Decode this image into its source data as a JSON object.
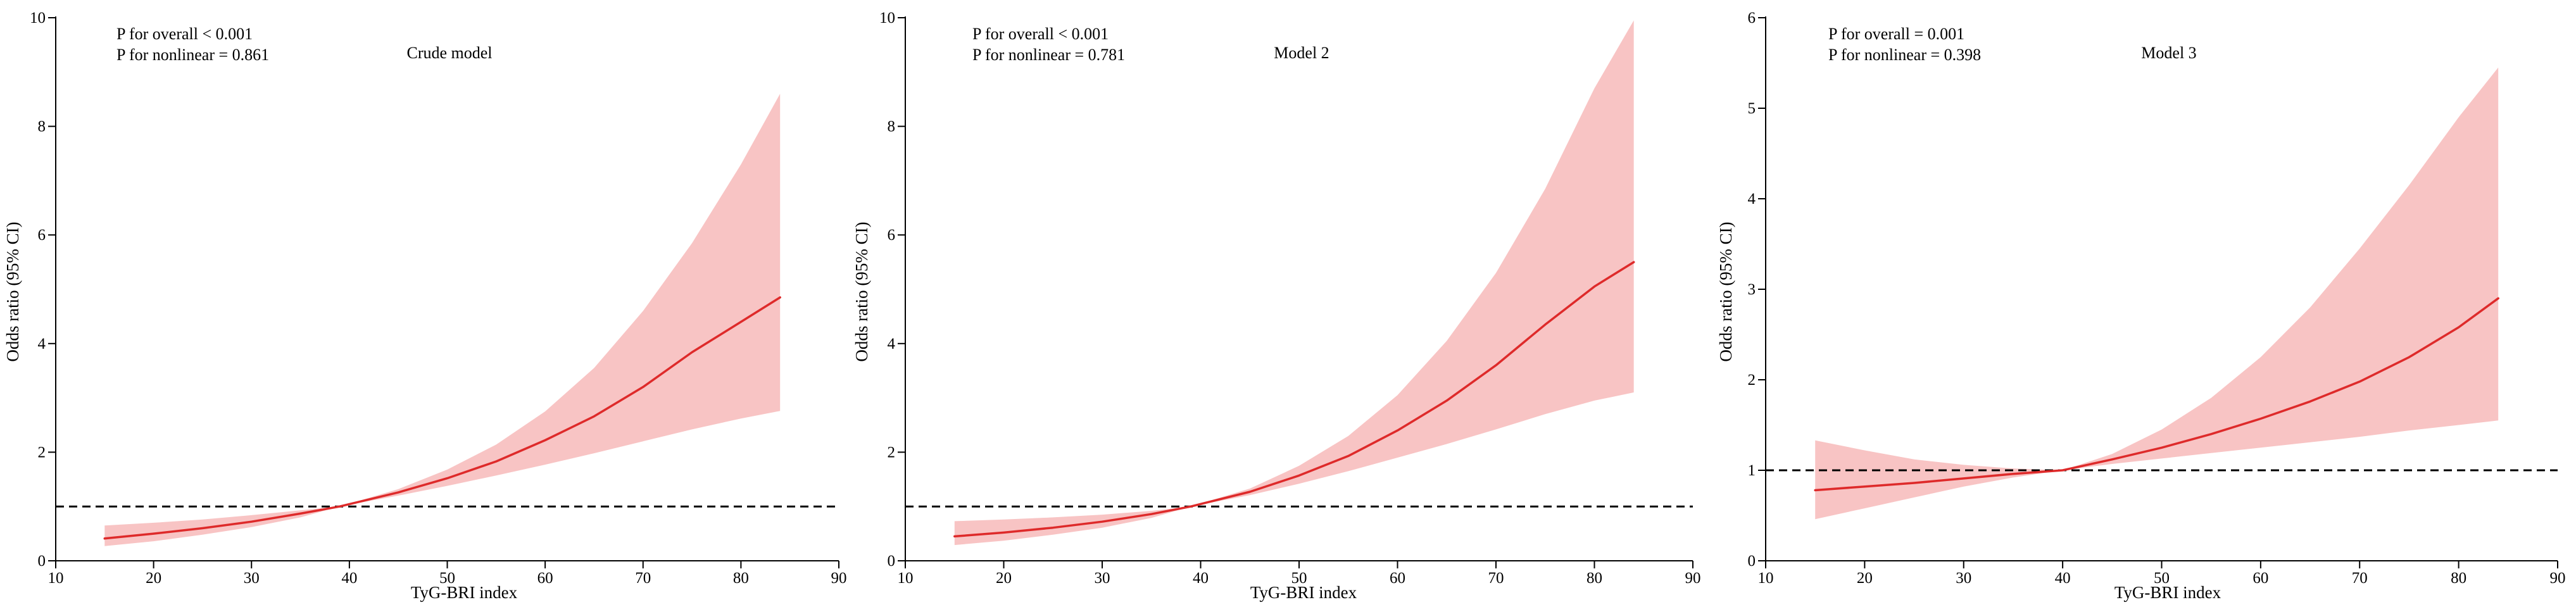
{
  "colors": {
    "band": "#f8c4c4",
    "curve": "#de2a2a",
    "ref": "#000000",
    "axis": "#000000"
  },
  "chart_data": [
    {
      "type": "line",
      "title": "Crude model",
      "xlabel": "TyG-BRI index",
      "ylabel": "Odds ratio (95% CI)",
      "xlim": [
        10,
        90
      ],
      "ylim": [
        0,
        10
      ],
      "xticks": [
        "10",
        "20",
        "30",
        "40",
        "50",
        "60",
        "70",
        "80",
        "90"
      ],
      "yticks": [
        "0",
        "2",
        "4",
        "6",
        "8",
        "10"
      ],
      "p_overall": "P for overall < 0.001",
      "p_nonlinear": "P for nonlinear = 0.861",
      "reference_line": 1,
      "series": [
        {
          "name": "Odds ratio",
          "x": [
            15,
            20,
            25,
            30,
            35,
            39,
            45,
            50,
            55,
            60,
            65,
            70,
            75,
            80,
            84
          ],
          "values": [
            0.41,
            0.5,
            0.6,
            0.72,
            0.87,
            1.0,
            1.26,
            1.52,
            1.83,
            2.22,
            2.66,
            3.2,
            3.84,
            4.4,
            4.85
          ]
        },
        {
          "name": "Upper 95% CI",
          "x": [
            15,
            20,
            25,
            30,
            35,
            39,
            45,
            50,
            55,
            60,
            65,
            70,
            75,
            80,
            84
          ],
          "values": [
            0.65,
            0.7,
            0.76,
            0.84,
            0.93,
            1.0,
            1.32,
            1.68,
            2.14,
            2.75,
            3.55,
            4.6,
            5.85,
            7.3,
            8.6
          ]
        },
        {
          "name": "Lower 95% CI",
          "x": [
            15,
            20,
            25,
            30,
            35,
            39,
            45,
            50,
            55,
            60,
            65,
            70,
            75,
            80,
            84
          ],
          "values": [
            0.27,
            0.36,
            0.48,
            0.62,
            0.8,
            1.0,
            1.2,
            1.38,
            1.57,
            1.77,
            1.98,
            2.2,
            2.42,
            2.62,
            2.76
          ]
        }
      ]
    },
    {
      "type": "line",
      "title": "Model 2",
      "xlabel": "TyG-BRI index",
      "ylabel": "Odds ratio (95% CI)",
      "xlim": [
        10,
        90
      ],
      "ylim": [
        0,
        10
      ],
      "xticks": [
        "10",
        "20",
        "30",
        "40",
        "50",
        "60",
        "70",
        "80",
        "90"
      ],
      "yticks": [
        "0",
        "2",
        "4",
        "6",
        "8",
        "10"
      ],
      "p_overall": "P for overall < 0.001",
      "p_nonlinear": "P for nonlinear = 0.781",
      "reference_line": 1,
      "series": [
        {
          "name": "Odds ratio",
          "x": [
            15,
            20,
            25,
            30,
            35,
            39,
            45,
            50,
            55,
            60,
            65,
            70,
            75,
            80,
            84
          ],
          "values": [
            0.45,
            0.52,
            0.61,
            0.72,
            0.86,
            1.0,
            1.27,
            1.57,
            1.93,
            2.4,
            2.95,
            3.6,
            4.35,
            5.05,
            5.5
          ]
        },
        {
          "name": "Upper 95% CI",
          "x": [
            15,
            20,
            25,
            30,
            35,
            39,
            45,
            50,
            55,
            60,
            65,
            70,
            75,
            80,
            84
          ],
          "values": [
            0.73,
            0.76,
            0.8,
            0.85,
            0.92,
            1.0,
            1.33,
            1.75,
            2.3,
            3.05,
            4.05,
            5.3,
            6.85,
            8.7,
            9.95
          ]
        },
        {
          "name": "Lower 95% CI",
          "x": [
            15,
            20,
            25,
            30,
            35,
            39,
            45,
            50,
            55,
            60,
            65,
            70,
            75,
            80,
            84
          ],
          "values": [
            0.29,
            0.37,
            0.48,
            0.61,
            0.79,
            1.0,
            1.21,
            1.42,
            1.65,
            1.9,
            2.15,
            2.42,
            2.7,
            2.95,
            3.1
          ]
        }
      ]
    },
    {
      "type": "line",
      "title": "Model 3",
      "xlabel": "TyG-BRI index",
      "ylabel": "Odds ratio (95% CI)",
      "xlim": [
        10,
        90
      ],
      "ylim": [
        0,
        6
      ],
      "xticks": [
        "10",
        "20",
        "30",
        "40",
        "50",
        "60",
        "70",
        "80",
        "90"
      ],
      "yticks": [
        "0",
        "1",
        "2",
        "3",
        "4",
        "5",
        "6"
      ],
      "p_overall": "P for overall = 0.001",
      "p_nonlinear": "P for nonlinear = 0.398",
      "reference_line": 1,
      "series": [
        {
          "name": "Odds ratio",
          "x": [
            15,
            20,
            25,
            30,
            35,
            40,
            45,
            50,
            55,
            60,
            65,
            70,
            75,
            80,
            84
          ],
          "values": [
            0.78,
            0.82,
            0.86,
            0.91,
            0.96,
            1.0,
            1.12,
            1.25,
            1.4,
            1.57,
            1.76,
            1.98,
            2.25,
            2.58,
            2.9
          ]
        },
        {
          "name": "Upper 95% CI",
          "x": [
            15,
            20,
            25,
            30,
            35,
            40,
            45,
            50,
            55,
            60,
            65,
            70,
            75,
            80,
            84
          ],
          "values": [
            1.33,
            1.22,
            1.12,
            1.06,
            1.02,
            1.0,
            1.18,
            1.45,
            1.8,
            2.25,
            2.8,
            3.45,
            4.15,
            4.9,
            5.45
          ]
        },
        {
          "name": "Lower 95% CI",
          "x": [
            15,
            20,
            25,
            30,
            35,
            40,
            45,
            50,
            55,
            60,
            65,
            70,
            75,
            80,
            84
          ],
          "values": [
            0.46,
            0.58,
            0.7,
            0.82,
            0.92,
            1.0,
            1.07,
            1.13,
            1.19,
            1.25,
            1.31,
            1.37,
            1.44,
            1.5,
            1.55
          ]
        }
      ]
    }
  ]
}
